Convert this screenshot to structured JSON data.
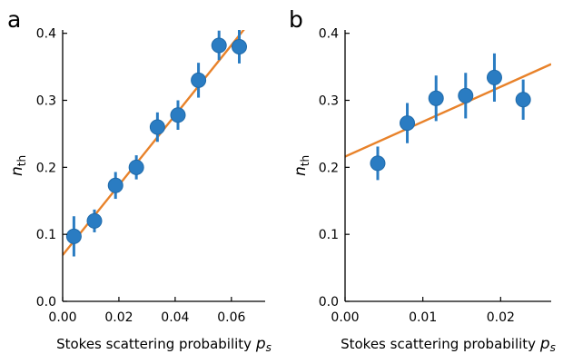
{
  "colors": {
    "marker": "#2a7cc2",
    "marker_edge": "#1f6aaa",
    "fit_line": "#e8822a",
    "axis": "#000000"
  },
  "chart_data": [
    {
      "panel_label": "a",
      "type": "scatter",
      "xlabel_main": "Stokes scattering probability ",
      "xlabel_var": "p",
      "xlabel_sub": "s",
      "ylabel_main": "n",
      "ylabel_sub": "th",
      "xlim": [
        0,
        0.072
      ],
      "ylim": [
        0,
        0.405
      ],
      "xticks": [
        0.0,
        0.02,
        0.04,
        0.06
      ],
      "xtick_labels": [
        "0.00",
        "0.02",
        "0.04",
        "0.06"
      ],
      "yticks": [
        0.0,
        0.1,
        0.2,
        0.3,
        0.4
      ],
      "ytick_labels": [
        "0.0",
        "0.1",
        "0.2",
        "0.3",
        "0.4"
      ],
      "points": [
        {
          "x": 0.004,
          "y": 0.097,
          "err": 0.03
        },
        {
          "x": 0.0113,
          "y": 0.12,
          "err": 0.017
        },
        {
          "x": 0.0188,
          "y": 0.173,
          "err": 0.02
        },
        {
          "x": 0.0262,
          "y": 0.2,
          "err": 0.018
        },
        {
          "x": 0.0337,
          "y": 0.26,
          "err": 0.022
        },
        {
          "x": 0.041,
          "y": 0.278,
          "err": 0.022
        },
        {
          "x": 0.0483,
          "y": 0.33,
          "err": 0.026
        },
        {
          "x": 0.0556,
          "y": 0.382,
          "err": 0.022
        },
        {
          "x": 0.0628,
          "y": 0.38,
          "err": 0.025
        }
      ],
      "fit": {
        "x": [
          0.0,
          0.072
        ],
        "y": [
          0.069,
          0.445
        ]
      }
    },
    {
      "panel_label": "b",
      "type": "scatter",
      "xlabel_main": "Stokes scattering probability ",
      "xlabel_var": "p",
      "xlabel_sub": "s",
      "ylabel_main": "n",
      "ylabel_sub": "th",
      "xlim": [
        0,
        0.0265
      ],
      "ylim": [
        0,
        0.405
      ],
      "xticks": [
        0.0,
        0.01,
        0.02
      ],
      "xtick_labels": [
        "0.00",
        "0.01",
        "0.02"
      ],
      "yticks": [
        0.0,
        0.1,
        0.2,
        0.3,
        0.4
      ],
      "ytick_labels": [
        "0.0",
        "0.1",
        "0.2",
        "0.3",
        "0.4"
      ],
      "points": [
        {
          "x": 0.0042,
          "y": 0.206,
          "err": 0.025
        },
        {
          "x": 0.008,
          "y": 0.266,
          "err": 0.03
        },
        {
          "x": 0.0117,
          "y": 0.303,
          "err": 0.034
        },
        {
          "x": 0.0155,
          "y": 0.307,
          "err": 0.034
        },
        {
          "x": 0.0192,
          "y": 0.334,
          "err": 0.036
        },
        {
          "x": 0.0229,
          "y": 0.301,
          "err": 0.03
        }
      ],
      "fit": {
        "x": [
          0.0,
          0.0265
        ],
        "y": [
          0.216,
          0.354
        ]
      }
    }
  ]
}
